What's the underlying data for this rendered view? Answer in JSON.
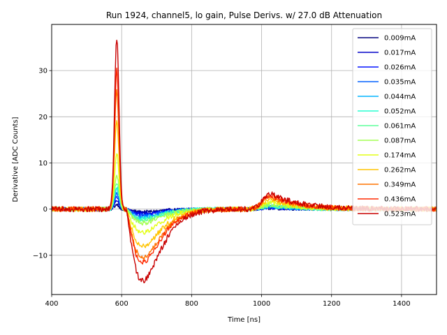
{
  "chart_data": {
    "type": "line",
    "title": "Run 1924, channel5, lo gain, Pulse Derivs. w/ 27.0 dB Attenuation",
    "xlabel": "Time [ns]",
    "ylabel": "Derivative [ADC Counts]",
    "xlim": [
      400,
      1500
    ],
    "ylim": [
      -18.5,
      40
    ],
    "xticks": [
      400,
      600,
      800,
      1000,
      1200,
      1400
    ],
    "yticks": [
      -10,
      0,
      10,
      20,
      30
    ],
    "ytick_labels": [
      "−10",
      "0",
      "10",
      "20",
      "30"
    ],
    "grid": true,
    "legend_position": "top-right",
    "series": [
      {
        "name": "0.009mA",
        "color": "#00007f",
        "peak": 1.0,
        "trough": -0.6,
        "bump": 0.2
      },
      {
        "name": "0.017mA",
        "color": "#0000c8",
        "peak": 1.8,
        "trough": -0.9,
        "bump": 0.3
      },
      {
        "name": "0.026mA",
        "color": "#0010ff",
        "peak": 2.6,
        "trough": -1.2,
        "bump": 0.4
      },
      {
        "name": "0.035mA",
        "color": "#0060ff",
        "peak": 3.4,
        "trough": -1.5,
        "bump": 0.5
      },
      {
        "name": "0.044mA",
        "color": "#00b4ff",
        "peak": 4.2,
        "trough": -1.8,
        "bump": 0.6
      },
      {
        "name": "0.052mA",
        "color": "#26ffd0",
        "peak": 5.0,
        "trough": -2.1,
        "bump": 0.7
      },
      {
        "name": "0.061mA",
        "color": "#5cff9a",
        "peak": 5.8,
        "trough": -2.4,
        "bump": 0.8
      },
      {
        "name": "0.087mA",
        "color": "#a4ff53",
        "peak": 7.5,
        "trough": -3.0,
        "bump": 1.0
      },
      {
        "name": "0.174mA",
        "color": "#e4ff13",
        "peak": 12.0,
        "trough": -5.0,
        "bump": 1.5
      },
      {
        "name": "0.262mA",
        "color": "#ffc400",
        "peak": 19.0,
        "trough": -8.0,
        "bump": 2.2
      },
      {
        "name": "0.349mA",
        "color": "#ff7300",
        "peak": 25.5,
        "trough": -10.5,
        "bump": 2.7
      },
      {
        "name": "0.436mA",
        "color": "#ff2a00",
        "peak": 30.0,
        "trough": -11.5,
        "bump": 3.0
      },
      {
        "name": "0.523mA",
        "color": "#c80000",
        "peak": 37.0,
        "trough": -15.5,
        "bump": 3.5
      }
    ]
  }
}
